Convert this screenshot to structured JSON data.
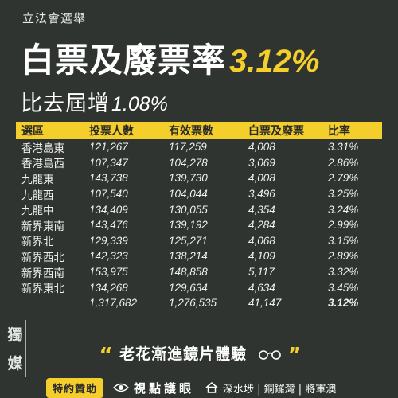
{
  "kicker": "立法會選舉",
  "headline": {
    "text": "白票及廢票率",
    "percent": "3.12%"
  },
  "subheadline": {
    "text": "比去屆增",
    "value": "1.08%"
  },
  "table": {
    "headers": [
      "選區",
      "投票人數",
      "有效票數",
      "白票及廢票",
      "比率"
    ],
    "rows": [
      [
        "香港島東",
        "121,267",
        "117,259",
        "4,008",
        "3.31%"
      ],
      [
        "香港島西",
        "107,347",
        "104,278",
        "3,069",
        "2.86%"
      ],
      [
        "九龍東",
        "143,738",
        "139,730",
        "4,008",
        "2.79%"
      ],
      [
        "九龍西",
        "107,540",
        "104,044",
        "3,496",
        "3.25%"
      ],
      [
        "九龍中",
        "134,409",
        "130,055",
        "4,354",
        "3.24%"
      ],
      [
        "新界東南",
        "143,476",
        "139,192",
        "4,284",
        "2.99%"
      ],
      [
        "新界北",
        "129,339",
        "125,271",
        "4,068",
        "3.15%"
      ],
      [
        "新界西北",
        "142,323",
        "138,214",
        "4,109",
        "2.89%"
      ],
      [
        "新界西南",
        "153,975",
        "148,858",
        "5,117",
        "3.32%"
      ],
      [
        "新界東北",
        "134,268",
        "129,634",
        "4,634",
        "3.45%"
      ]
    ],
    "total": [
      "",
      "1,317,682",
      "1,276,535",
      "41,147",
      "3.12%"
    ]
  },
  "logo": {
    "char1": "獨",
    "char2": "媒"
  },
  "promo": {
    "open_quote": "“",
    "text": "老花漸進鏡片體驗",
    "close_quote": "”",
    "icon": "glasses-icon"
  },
  "footer": {
    "sponsor_label": "特約贊助",
    "brand": "視點護眼",
    "brand_icon": "eye-icon",
    "locations_icon": "house-icon",
    "locations": "深水埗 | 銅鑼灣 | 將軍澳"
  },
  "colors": {
    "accent": "#f4cf2c",
    "background": "#2f3430"
  }
}
